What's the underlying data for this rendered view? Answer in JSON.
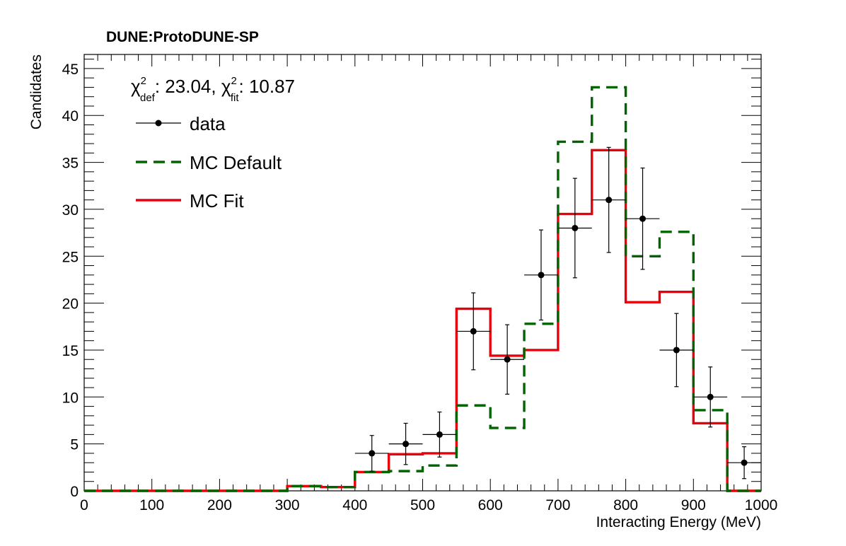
{
  "chart_data": {
    "type": "histogram",
    "title": "DUNE:ProtoDUNE-SP",
    "xlabel": "Interacting Energy (MeV)",
    "ylabel": "Candidates",
    "xlim": [
      0,
      1000
    ],
    "ylim": [
      0,
      46.5
    ],
    "x_ticks": [
      0,
      100,
      200,
      300,
      400,
      500,
      600,
      700,
      800,
      900,
      1000
    ],
    "y_ticks": [
      0,
      5,
      10,
      15,
      20,
      25,
      30,
      35,
      40,
      45
    ],
    "grid": false,
    "legend_placement": "top-left",
    "annotation": {
      "chi": "χ",
      "def_sup": "2",
      "def_sub": "def",
      "def_value": ": 23.04, ",
      "fit_sup": "2",
      "fit_sub": "fit",
      "fit_value": ": 10.87"
    },
    "bin_edges": [
      0,
      50,
      100,
      150,
      200,
      250,
      300,
      350,
      400,
      450,
      500,
      550,
      600,
      650,
      700,
      750,
      800,
      850,
      900,
      950,
      1000
    ],
    "series": [
      {
        "name": "data",
        "style": "points-with-errors",
        "color": "#000000",
        "points": [
          {
            "x": 425,
            "y": 4,
            "yerr_low": 1.9,
            "yerr_high": 1.9
          },
          {
            "x": 475,
            "y": 5,
            "yerr_low": 2.2,
            "yerr_high": 2.2
          },
          {
            "x": 525,
            "y": 6,
            "yerr_low": 2.4,
            "yerr_high": 2.4
          },
          {
            "x": 575,
            "y": 17,
            "yerr_low": 4.1,
            "yerr_high": 4.1
          },
          {
            "x": 625,
            "y": 14,
            "yerr_low": 3.7,
            "yerr_high": 3.7
          },
          {
            "x": 675,
            "y": 23,
            "yerr_low": 4.8,
            "yerr_high": 4.8
          },
          {
            "x": 725,
            "y": 28,
            "yerr_low": 5.3,
            "yerr_high": 5.3
          },
          {
            "x": 775,
            "y": 31,
            "yerr_low": 5.6,
            "yerr_high": 5.6
          },
          {
            "x": 825,
            "y": 29,
            "yerr_low": 5.4,
            "yerr_high": 5.4
          },
          {
            "x": 875,
            "y": 15,
            "yerr_low": 3.9,
            "yerr_high": 3.9
          },
          {
            "x": 925,
            "y": 10,
            "yerr_low": 3.2,
            "yerr_high": 3.2
          },
          {
            "x": 975,
            "y": 3,
            "yerr_low": 1.7,
            "yerr_high": 1.7
          }
        ],
        "xerr": 25
      },
      {
        "name": "MC Default",
        "style": "dashed-step",
        "color": "#006400",
        "values": [
          0,
          0,
          0,
          0,
          0,
          0,
          0.5,
          0.4,
          2.0,
          2.1,
          2.7,
          9.1,
          6.7,
          17.8,
          37.2,
          43.0,
          25.0,
          27.6,
          8.6,
          0
        ]
      },
      {
        "name": "MC Fit",
        "style": "solid-step",
        "color": "#e8000b",
        "values": [
          0,
          0,
          0,
          0,
          0,
          0,
          0.5,
          0.4,
          2.0,
          3.9,
          4.0,
          19.4,
          14.4,
          15.0,
          29.5,
          36.3,
          20.1,
          21.2,
          7.2,
          0
        ]
      }
    ]
  }
}
